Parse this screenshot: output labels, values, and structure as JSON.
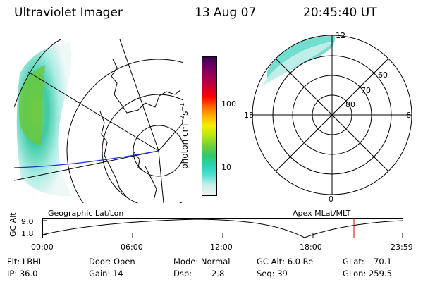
{
  "header": {
    "instrument": "Ultraviolet Imager",
    "date": "13 Aug 07",
    "time": "20:45:40 UT"
  },
  "colorbar": {
    "unit_label": "photon cm",
    "unit_sup1": "−2",
    "unit_mid": "s",
    "unit_sup2": "−1",
    "tick_100": "100",
    "tick_10": "10",
    "colors": [
      "#f2f2f2",
      "#c8f0ec",
      "#55e0d4",
      "#28d2b4",
      "#32c86e",
      "#6ecf3c",
      "#b4e614",
      "#f0f000",
      "#ffb400",
      "#ff6400",
      "#ff0000",
      "#c80032",
      "#a00050",
      "#6e0064",
      "#3c0050"
    ]
  },
  "polar_plot": {
    "mlt_12": "12",
    "mlt_18": "18",
    "mlt_6": "6",
    "mlt_0": "0",
    "lat_60": "60",
    "lat_70": "70",
    "lat_80": "80"
  },
  "timeline": {
    "left_title": "Geographic Lat/Lon",
    "right_title": "Apex MLat/MLT",
    "y_label": "GC Alt",
    "y_max": "9.0",
    "y_min": "1.8",
    "x_ticks": [
      "00:00",
      "06:00",
      "12:00",
      "18:00",
      "23:59"
    ],
    "marker_color": "#e00000"
  },
  "footer": {
    "flt": "Flt: LBHL",
    "ip": "IP: 36.0",
    "door": "Door: Open",
    "gain": "Gain: 14",
    "mode": "Mode: Normal",
    "dsp_label": "Dsp:",
    "dsp_value": "2.8",
    "gcalt": "GC Alt: 6.0 Re",
    "seq": "Seq: 39",
    "glat": "GLat: −70.1",
    "glon": "GLon: 259.5"
  }
}
